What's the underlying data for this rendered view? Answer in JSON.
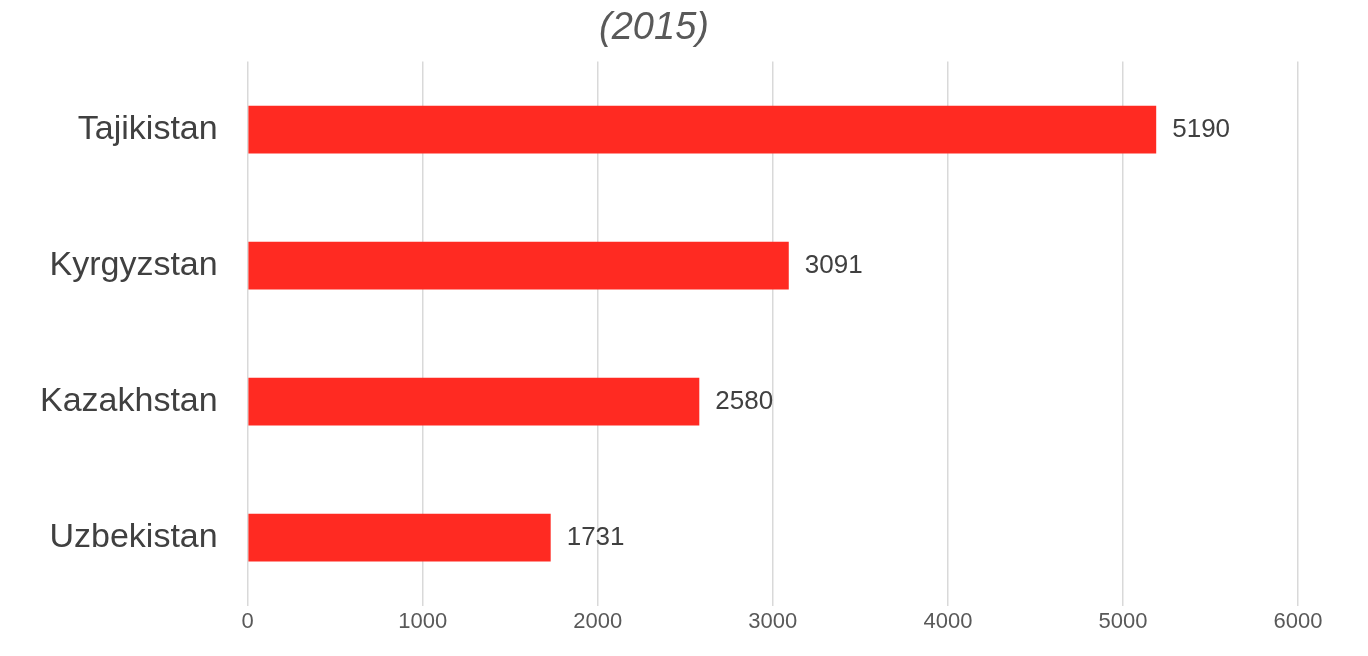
{
  "chart_data": {
    "type": "bar",
    "orientation": "horizontal",
    "title": "(2015)",
    "categories": [
      "Tajikistan",
      "Kyrgyzstan",
      "Kazakhstan",
      "Uzbekistan"
    ],
    "values": [
      5190,
      3091,
      2580,
      1731
    ],
    "color": "#ff2a22",
    "xlim": [
      0,
      6000
    ],
    "xticks": [
      0,
      1000,
      2000,
      3000,
      4000,
      5000,
      6000
    ],
    "grid": "x",
    "data_labels": true,
    "legend": false
  }
}
